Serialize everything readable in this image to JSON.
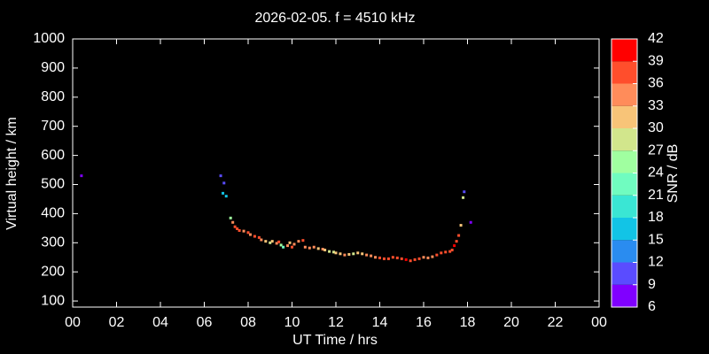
{
  "chart_data": {
    "type": "scatter",
    "title": "2026-02-05. f = 4510 kHz",
    "xlabel": "UT Time / hrs",
    "ylabel": "Virtual height / km",
    "xlim": [
      0,
      24
    ],
    "ylim": [
      79,
      1000
    ],
    "xticks": [
      {
        "value": 0,
        "label": "00"
      },
      {
        "value": 2,
        "label": "02"
      },
      {
        "value": 4,
        "label": "04"
      },
      {
        "value": 6,
        "label": "06"
      },
      {
        "value": 8,
        "label": "08"
      },
      10,
      12,
      14,
      16,
      18,
      20,
      22,
      {
        "value": 24,
        "label": "00"
      }
    ],
    "yticks": [
      100,
      200,
      300,
      400,
      500,
      600,
      700,
      800,
      900,
      1000
    ],
    "x": [
      0.4,
      6.75,
      6.9,
      6.85,
      7.0,
      7.2,
      7.3,
      7.4,
      7.5,
      7.6,
      7.8,
      8.0,
      8.1,
      8.3,
      8.5,
      8.6,
      8.8,
      9.0,
      9.1,
      9.3,
      9.4,
      9.5,
      9.6,
      9.8,
      9.9,
      10.0,
      10.1,
      10.3,
      10.5,
      10.6,
      10.8,
      11.0,
      11.2,
      11.4,
      11.5,
      11.7,
      11.9,
      12.0,
      12.2,
      12.4,
      12.6,
      12.8,
      13.0,
      13.2,
      13.4,
      13.6,
      13.8,
      14.0,
      14.2,
      14.4,
      14.6,
      14.8,
      15.0,
      15.2,
      15.4,
      15.6,
      15.8,
      16.0,
      16.2,
      16.4,
      16.6,
      16.8,
      17.0,
      17.2,
      17.3,
      17.4,
      17.5,
      17.6,
      17.7,
      17.8,
      17.85,
      18.15
    ],
    "values": [
      530,
      530,
      505,
      470,
      460,
      385,
      370,
      355,
      348,
      342,
      340,
      335,
      328,
      322,
      318,
      310,
      305,
      300,
      305,
      298,
      303,
      292,
      285,
      290,
      300,
      285,
      295,
      305,
      308,
      285,
      282,
      285,
      280,
      278,
      275,
      270,
      268,
      265,
      262,
      258,
      260,
      262,
      265,
      262,
      258,
      255,
      250,
      248,
      245,
      245,
      250,
      248,
      245,
      242,
      238,
      242,
      245,
      250,
      248,
      252,
      258,
      265,
      268,
      270,
      275,
      290,
      305,
      325,
      360,
      455,
      475,
      370
    ],
    "snr": [
      8,
      9,
      10,
      15,
      17,
      24,
      33,
      36,
      36,
      36,
      34,
      36,
      34,
      36,
      36,
      33,
      30,
      27,
      31,
      34,
      36,
      24,
      21,
      33,
      30,
      36,
      34,
      33,
      36,
      33,
      34,
      33,
      31,
      33,
      30,
      29,
      28,
      30,
      32,
      33,
      31,
      28,
      30,
      32,
      33,
      34,
      35,
      36,
      37,
      38,
      37,
      36,
      38,
      39,
      38,
      37,
      36,
      35,
      34,
      35,
      36,
      37,
      36,
      37,
      38,
      39,
      38,
      37,
      30,
      27,
      9,
      8
    ],
    "colorbar": {
      "label": "SNR / dB",
      "lim": [
        6,
        42
      ],
      "ticks": [
        6,
        9,
        12,
        15,
        18,
        21,
        24,
        27,
        30,
        33,
        36,
        39,
        42
      ],
      "colors": [
        "#8000ff",
        "#5a4cff",
        "#2a8cf0",
        "#12c4e6",
        "#3ae6d4",
        "#70fcc0",
        "#a0ffa0",
        "#d2e68c",
        "#f8c478",
        "#ff8c5a",
        "#ff4e2c",
        "#ff0000"
      ]
    }
  }
}
